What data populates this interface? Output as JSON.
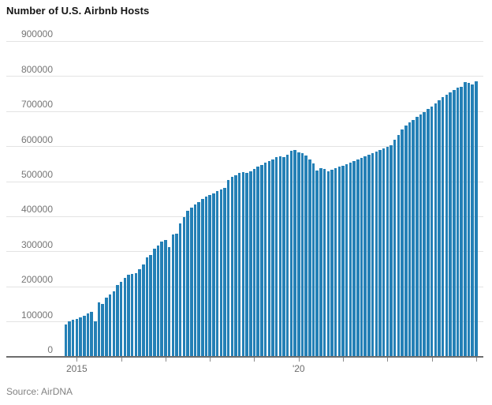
{
  "chart": {
    "title": "Number of U.S. Airbnb Hosts",
    "source": "Source: AirDNA"
  },
  "chart_data": {
    "type": "bar",
    "title": "Number of U.S. Airbnb Hosts",
    "source_label": "Source: AirDNA",
    "ylabel": "",
    "xlabel": "",
    "ylim": [
      0,
      900000
    ],
    "grid": true,
    "legend": "none",
    "bar_color": "#2480b6",
    "axis_color": "#6d6d6d",
    "gridline_color": "#e3e3e3",
    "label_color": "#757575",
    "y_ticks": [
      0,
      100000,
      200000,
      300000,
      400000,
      500000,
      600000,
      700000,
      800000,
      900000
    ],
    "x_axis_labels": [
      {
        "text": "2015",
        "month": "2015-01"
      },
      {
        "text": "'20",
        "month": "2020-01"
      }
    ],
    "x": [
      "2014-10",
      "2014-11",
      "2014-12",
      "2015-01",
      "2015-02",
      "2015-03",
      "2015-04",
      "2015-05",
      "2015-06",
      "2015-07",
      "2015-08",
      "2015-09",
      "2015-10",
      "2015-11",
      "2015-12",
      "2016-01",
      "2016-02",
      "2016-03",
      "2016-04",
      "2016-05",
      "2016-06",
      "2016-07",
      "2016-08",
      "2016-09",
      "2016-10",
      "2016-11",
      "2016-12",
      "2017-01",
      "2017-02",
      "2017-03",
      "2017-04",
      "2017-05",
      "2017-06",
      "2017-07",
      "2017-08",
      "2017-09",
      "2017-10",
      "2017-11",
      "2017-12",
      "2018-01",
      "2018-02",
      "2018-03",
      "2018-04",
      "2018-05",
      "2018-06",
      "2018-07",
      "2018-08",
      "2018-09",
      "2018-10",
      "2018-11",
      "2018-12",
      "2019-01",
      "2019-02",
      "2019-03",
      "2019-04",
      "2019-05",
      "2019-06",
      "2019-07",
      "2019-08",
      "2019-09",
      "2019-10",
      "2019-11",
      "2019-12",
      "2020-01",
      "2020-02",
      "2020-03",
      "2020-04",
      "2020-05",
      "2020-06",
      "2020-07",
      "2020-08",
      "2020-09",
      "2020-10",
      "2020-11",
      "2020-12",
      "2021-01",
      "2021-02",
      "2021-03",
      "2021-04",
      "2021-05",
      "2021-06",
      "2021-07",
      "2021-08",
      "2021-09",
      "2021-10",
      "2021-11",
      "2021-12",
      "2022-01",
      "2022-02",
      "2022-03",
      "2022-04",
      "2022-05",
      "2022-06",
      "2022-07",
      "2022-08",
      "2022-09",
      "2022-10",
      "2022-11",
      "2022-12",
      "2023-01",
      "2023-02",
      "2023-03",
      "2023-04",
      "2023-05",
      "2023-06",
      "2023-07",
      "2023-08",
      "2023-09",
      "2023-10",
      "2023-11",
      "2023-12",
      "2024-01"
    ],
    "values": [
      92000,
      101000,
      105000,
      108000,
      113000,
      118000,
      123000,
      128000,
      101000,
      155000,
      152000,
      170000,
      179000,
      186000,
      206000,
      215000,
      226000,
      234000,
      236000,
      238000,
      250000,
      263000,
      284000,
      291000,
      308000,
      317000,
      328000,
      334000,
      313000,
      348000,
      351000,
      381000,
      398000,
      416000,
      425000,
      434000,
      442000,
      450000,
      457000,
      462000,
      467000,
      472000,
      477000,
      482000,
      504000,
      513000,
      519000,
      524000,
      528000,
      525000,
      529000,
      535000,
      542000,
      548000,
      553000,
      558000,
      563000,
      569000,
      573000,
      570000,
      577000,
      587000,
      591000,
      584000,
      581000,
      574000,
      563000,
      552000,
      532000,
      539000,
      536000,
      529000,
      534000,
      538000,
      542000,
      546000,
      550000,
      554000,
      559000,
      563000,
      567000,
      572000,
      577000,
      581000,
      585000,
      590000,
      594000,
      600000,
      604000,
      619000,
      634000,
      649000,
      659000,
      668000,
      676000,
      684000,
      692000,
      699000,
      707000,
      714000,
      723000,
      732000,
      741000,
      748000,
      754000,
      762000,
      767000,
      771000,
      784000,
      782000,
      777000,
      786000
    ]
  }
}
